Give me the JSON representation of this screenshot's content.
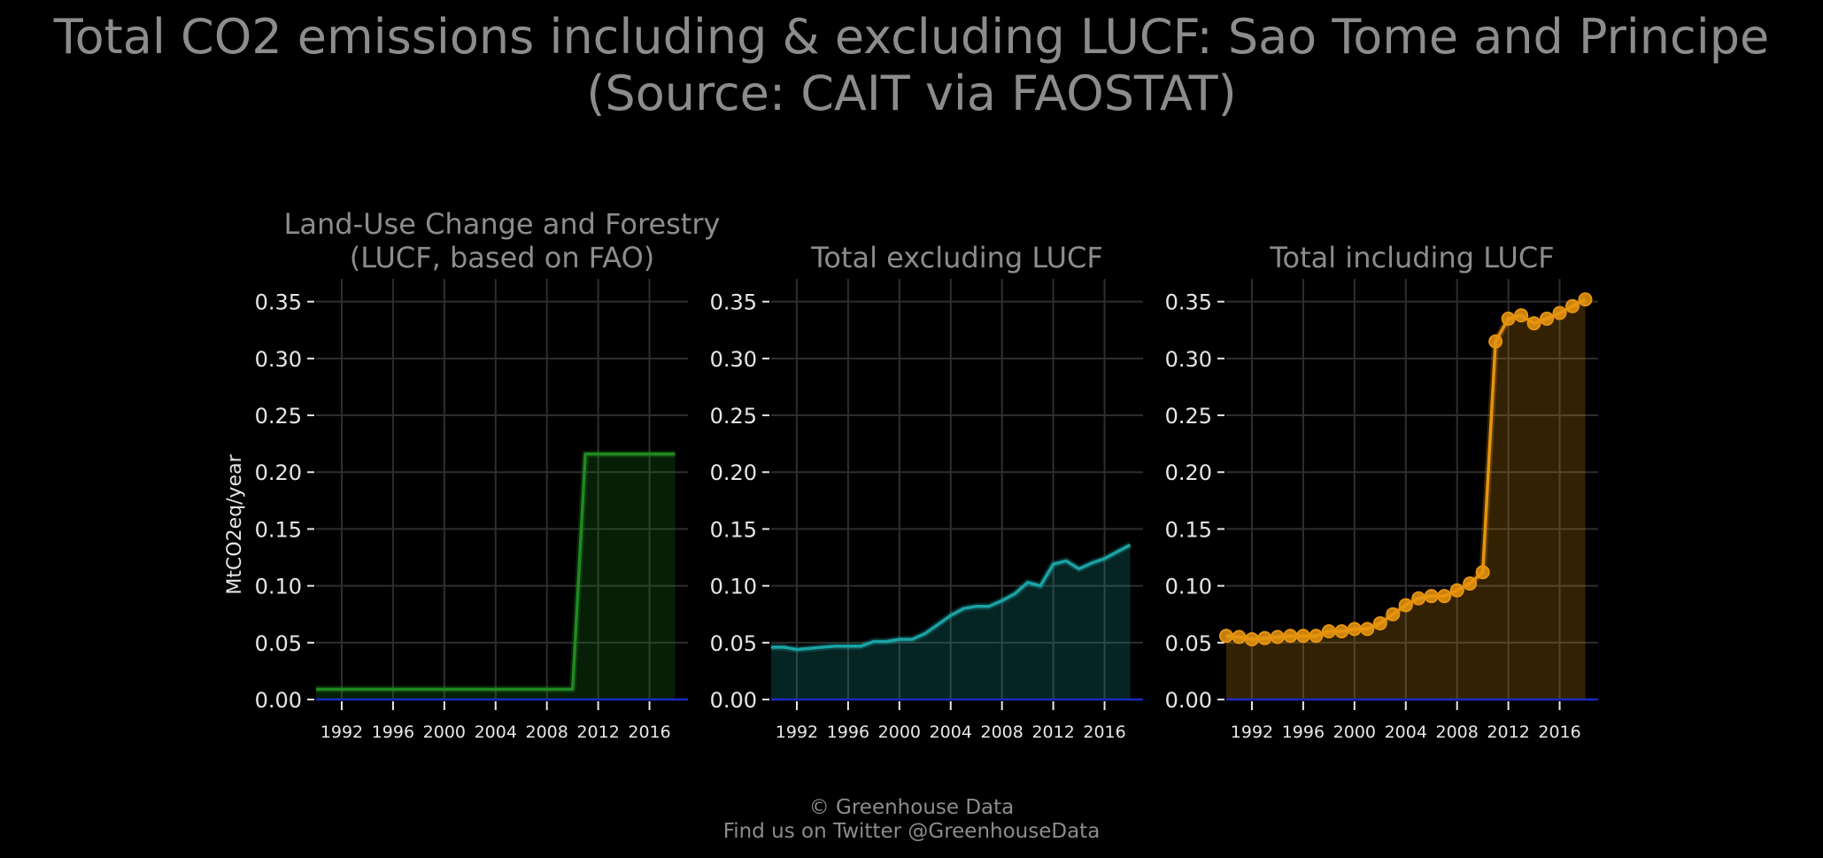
{
  "title": {
    "line1": "Total CO2 emissions including & excluding LUCF: Sao Tome and Principe",
    "line2": "(Source: CAIT via FAOSTAT)"
  },
  "footer": {
    "line1": "© Greenhouse Data",
    "line2": "Find us on Twitter @GreenhouseData"
  },
  "colors": {
    "background": "#000000",
    "grid": "#2e2e2e",
    "text": "#8c8c8c",
    "tick_text": "#e6e6e6",
    "zero_line": "#1a2bbf",
    "lucf": "#1f8a1f",
    "excl": "#1aa3a3",
    "incl": "#e6940f"
  },
  "chart_data": [
    {
      "type": "area",
      "title": "Land-Use Change and Forestry\n(LUCF, based on FAO)",
      "ylabel": "MtCO2eq/year",
      "xlim": [
        1990,
        2019
      ],
      "ylim": [
        0,
        0.37
      ],
      "yticks": [
        0.0,
        0.05,
        0.1,
        0.15,
        0.2,
        0.25,
        0.3,
        0.35
      ],
      "xticks": [
        1992,
        1996,
        2000,
        2004,
        2008,
        2012,
        2016
      ],
      "grid": true,
      "markers": false,
      "color": "#1f8a1f",
      "x": [
        1990,
        1991,
        1992,
        1993,
        1994,
        1995,
        1996,
        1997,
        1998,
        1999,
        2000,
        2001,
        2002,
        2003,
        2004,
        2005,
        2006,
        2007,
        2008,
        2009,
        2010,
        2011,
        2012,
        2013,
        2014,
        2015,
        2016,
        2017,
        2018
      ],
      "y": [
        0.009,
        0.009,
        0.009,
        0.009,
        0.009,
        0.009,
        0.009,
        0.009,
        0.009,
        0.009,
        0.009,
        0.009,
        0.009,
        0.009,
        0.009,
        0.009,
        0.009,
        0.009,
        0.009,
        0.009,
        0.009,
        0.216,
        0.216,
        0.216,
        0.216,
        0.216,
        0.216,
        0.216,
        0.216
      ]
    },
    {
      "type": "area",
      "title": "Total excluding LUCF",
      "ylabel": "",
      "xlim": [
        1990,
        2019
      ],
      "ylim": [
        0,
        0.37
      ],
      "yticks": [
        0.0,
        0.05,
        0.1,
        0.15,
        0.2,
        0.25,
        0.3,
        0.35
      ],
      "xticks": [
        1992,
        1996,
        2000,
        2004,
        2008,
        2012,
        2016
      ],
      "grid": true,
      "markers": false,
      "color": "#1aa3a3",
      "x": [
        1990,
        1991,
        1992,
        1993,
        1994,
        1995,
        1996,
        1997,
        1998,
        1999,
        2000,
        2001,
        2002,
        2003,
        2004,
        2005,
        2006,
        2007,
        2008,
        2009,
        2010,
        2011,
        2012,
        2013,
        2014,
        2015,
        2016,
        2017,
        2018
      ],
      "y": [
        0.046,
        0.046,
        0.044,
        0.045,
        0.046,
        0.047,
        0.047,
        0.047,
        0.051,
        0.051,
        0.053,
        0.053,
        0.058,
        0.066,
        0.074,
        0.08,
        0.082,
        0.082,
        0.087,
        0.093,
        0.103,
        0.1,
        0.119,
        0.122,
        0.115,
        0.12,
        0.124,
        0.13,
        0.136
      ]
    },
    {
      "type": "area",
      "title": "Total including LUCF",
      "ylabel": "",
      "xlim": [
        1990,
        2019
      ],
      "ylim": [
        0,
        0.37
      ],
      "yticks": [
        0.0,
        0.05,
        0.1,
        0.15,
        0.2,
        0.25,
        0.3,
        0.35
      ],
      "xticks": [
        1992,
        1996,
        2000,
        2004,
        2008,
        2012,
        2016
      ],
      "grid": true,
      "markers": true,
      "color": "#e6940f",
      "x": [
        1990,
        1991,
        1992,
        1993,
        1994,
        1995,
        1996,
        1997,
        1998,
        1999,
        2000,
        2001,
        2002,
        2003,
        2004,
        2005,
        2006,
        2007,
        2008,
        2009,
        2010,
        2011,
        2012,
        2013,
        2014,
        2015,
        2016,
        2017,
        2018
      ],
      "y": [
        0.056,
        0.055,
        0.053,
        0.054,
        0.055,
        0.056,
        0.056,
        0.056,
        0.06,
        0.06,
        0.062,
        0.062,
        0.067,
        0.075,
        0.083,
        0.089,
        0.091,
        0.091,
        0.096,
        0.102,
        0.112,
        0.315,
        0.335,
        0.338,
        0.331,
        0.335,
        0.34,
        0.346,
        0.352
      ]
    }
  ]
}
